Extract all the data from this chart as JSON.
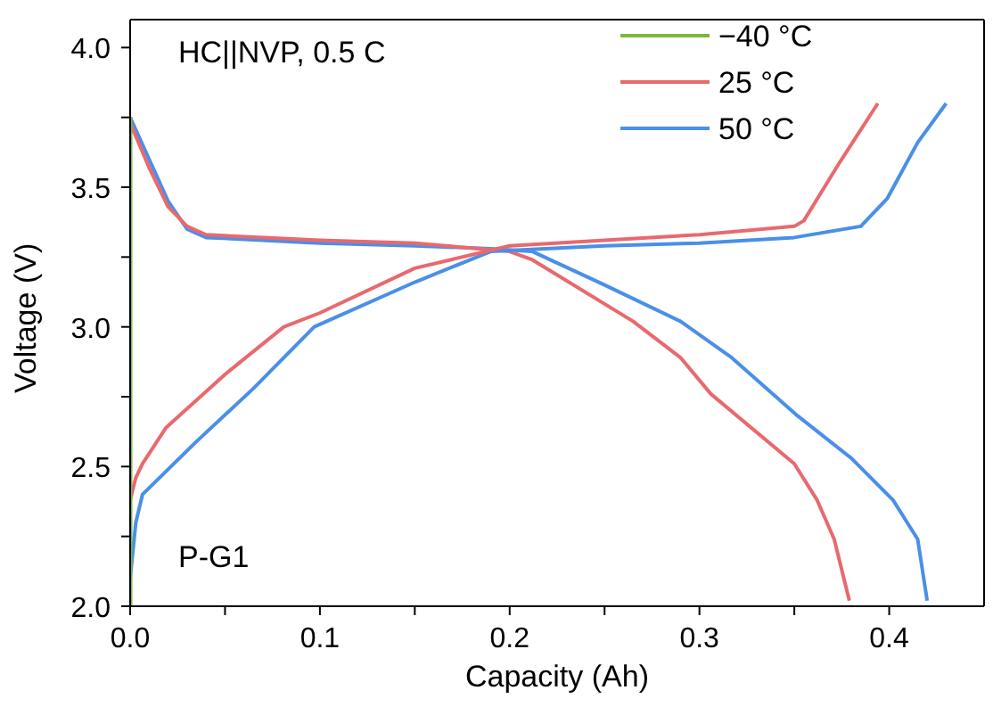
{
  "chart_data": {
    "type": "line",
    "xlabel": "Capacity (Ah)",
    "ylabel": "Voltage (V)",
    "annotations": [
      "HC||NVP, 0.5 C",
      "P-G1"
    ],
    "xlim": [
      0,
      0.45
    ],
    "ylim": [
      2.0,
      4.1
    ],
    "xticks": [
      {
        "value": 0,
        "label": "0.0"
      },
      {
        "value": 0.05,
        "label": null
      },
      {
        "value": 0.1,
        "label": "0.1"
      },
      {
        "value": 0.15,
        "label": null
      },
      {
        "value": 0.2,
        "label": "0.2"
      },
      {
        "value": 0.25,
        "label": null
      },
      {
        "value": 0.3,
        "label": "0.3"
      },
      {
        "value": 0.35,
        "label": null
      },
      {
        "value": 0.4,
        "label": "0.4"
      }
    ],
    "yticks": [
      {
        "value": 2,
        "label": "2.0"
      },
      {
        "value": 2.25,
        "label": null
      },
      {
        "value": 2.5,
        "label": "2.5"
      },
      {
        "value": 2.75,
        "label": null
      },
      {
        "value": 3,
        "label": "3.0"
      },
      {
        "value": 3.25,
        "label": null
      },
      {
        "value": 3.5,
        "label": "3.5"
      },
      {
        "value": 3.75,
        "label": null
      },
      {
        "value": 4,
        "label": "4.0"
      }
    ],
    "grid": false,
    "legend": "top right",
    "marker": "none",
    "line_style": "solid",
    "series": [
      {
        "name": "−40 °C",
        "color": "#7ab83c",
        "x": [
          0,
          0,
          0,
          0,
          0,
          0,
          0,
          0
        ],
        "values": [
          2.0,
          2.25,
          2.5,
          2.75,
          3.0,
          3.25,
          3.5,
          3.75
        ]
      },
      {
        "name": "25 °C",
        "color": "#e8696e",
        "x": [
          0,
          0.003,
          0.0065,
          0.019,
          0.05,
          0.081,
          0.1,
          0.15,
          0.2,
          0.25,
          0.3,
          0.35,
          0.355,
          0.374,
          0.394
        ],
        "values": [
          2.38,
          2.46,
          2.51,
          2.64,
          2.83,
          3.0,
          3.05,
          3.21,
          3.29,
          3.31,
          3.33,
          3.36,
          3.38,
          3.59,
          3.8
        ]
      },
      {
        "name": "50 °C",
        "color": "#4a8fe8",
        "x": [
          0,
          0.003,
          0.0065,
          0.035,
          0.065,
          0.097,
          0.15,
          0.19,
          0.25,
          0.3,
          0.35,
          0.385,
          0.399,
          0.415,
          0.43
        ],
        "values": [
          2.1,
          2.3,
          2.4,
          2.59,
          2.78,
          3.0,
          3.16,
          3.27,
          3.29,
          3.3,
          3.32,
          3.36,
          3.46,
          3.66,
          3.8
        ]
      },
      {
        "color": "#e8696e",
        "x": [
          0,
          0.01,
          0.02,
          0.03,
          0.04,
          0.1,
          0.15,
          0.2,
          0.212,
          0.265,
          0.29,
          0.306,
          0.35,
          0.362,
          0.371,
          0.379
        ],
        "values": [
          3.73,
          3.57,
          3.43,
          3.36,
          3.33,
          3.31,
          3.3,
          3.27,
          3.24,
          3.02,
          2.89,
          2.76,
          2.51,
          2.38,
          2.24,
          2.02
        ]
      },
      {
        "color": "#4a8fe8",
        "x": [
          0,
          0.01,
          0.02,
          0.03,
          0.04,
          0.1,
          0.15,
          0.19,
          0.212,
          0.25,
          0.29,
          0.317,
          0.352,
          0.38,
          0.402,
          0.415,
          0.42
        ],
        "values": [
          3.75,
          3.6,
          3.45,
          3.35,
          3.32,
          3.3,
          3.29,
          3.28,
          3.27,
          3.15,
          3.02,
          2.89,
          2.68,
          2.53,
          2.38,
          2.24,
          2.02
        ]
      }
    ]
  }
}
